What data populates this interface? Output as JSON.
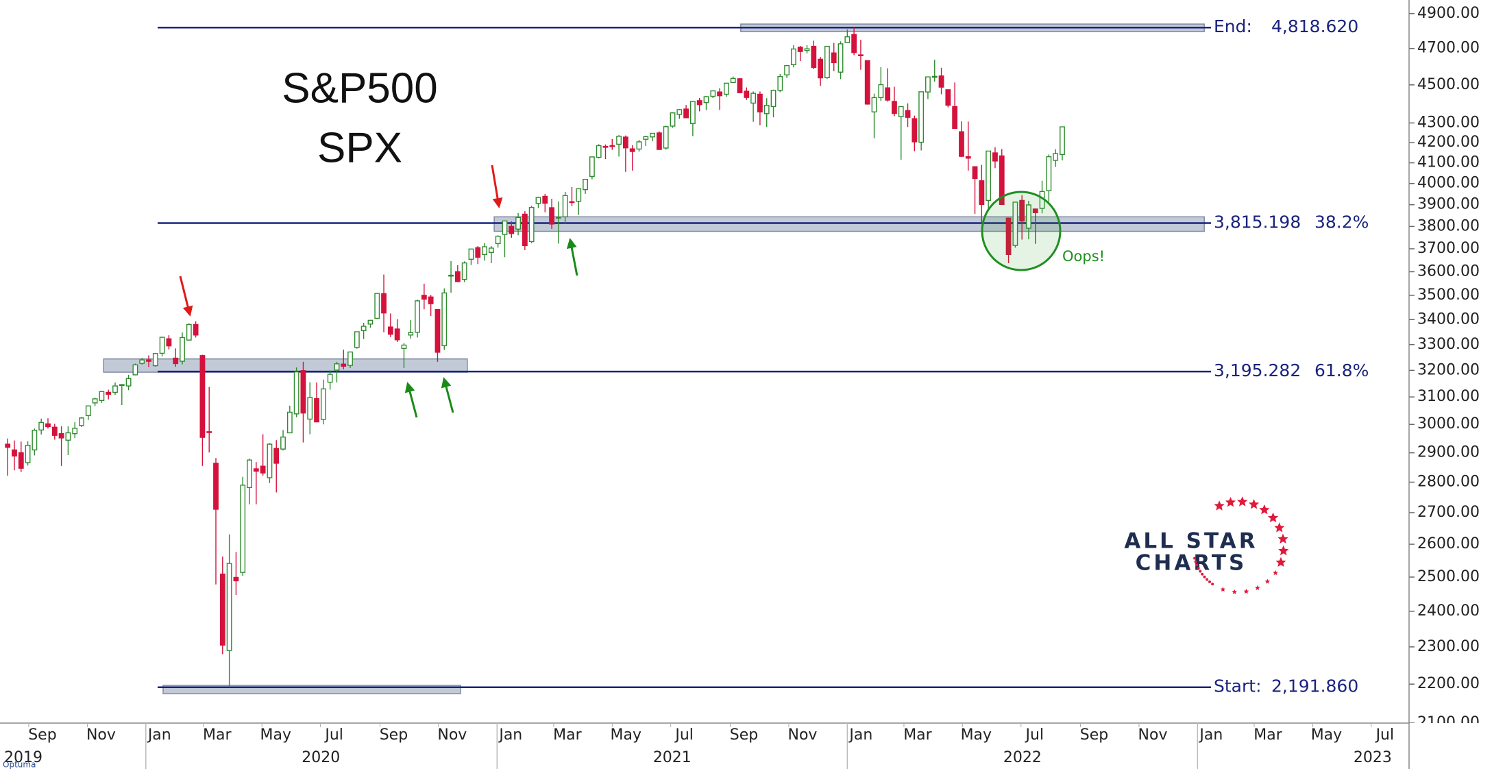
{
  "chart_data": {
    "type": "candlestick",
    "title": "S&P500",
    "subtitle": "SPX",
    "up_color": "#2e8b2e",
    "down_color": "#d4123c",
    "level_color": "#1a237e",
    "zone_color": "#9aa6bd",
    "ylog": true,
    "ylim": [
      2100,
      4980
    ],
    "yticks": [
      {
        "value": 4900,
        "label": "4900.00"
      },
      {
        "value": 4700,
        "label": "4700.00"
      },
      {
        "value": 4500,
        "label": "4500.00"
      },
      {
        "value": 4300,
        "label": "4300.00"
      },
      {
        "value": 4200,
        "label": "4200.00"
      },
      {
        "value": 4100,
        "label": "4100.00"
      },
      {
        "value": 4000,
        "label": "4000.00"
      },
      {
        "value": 3900,
        "label": "3900.00"
      },
      {
        "value": 3800,
        "label": "3800.00"
      },
      {
        "value": 3700,
        "label": "3700.00"
      },
      {
        "value": 3600,
        "label": "3600.00"
      },
      {
        "value": 3500,
        "label": "3500.00"
      },
      {
        "value": 3400,
        "label": "3400.00"
      },
      {
        "value": 3300,
        "label": "3300.00"
      },
      {
        "value": 3200,
        "label": "3200.00"
      },
      {
        "value": 3100,
        "label": "3100.00"
      },
      {
        "value": 3000,
        "label": "3000.00"
      },
      {
        "value": 2900,
        "label": "2900.00"
      },
      {
        "value": 2800,
        "label": "2800.00"
      },
      {
        "value": 2700,
        "label": "2700.00"
      },
      {
        "value": 2600,
        "label": "2600.00"
      },
      {
        "value": 2500,
        "label": "2500.00"
      },
      {
        "value": 2400,
        "label": "2400.00"
      },
      {
        "value": 2300,
        "label": "2300.00"
      },
      {
        "value": 2200,
        "label": "2200.00"
      },
      {
        "value": 2100,
        "label": "2100.00"
      }
    ],
    "xlim": [
      -1.14,
      207.71
    ],
    "xticks": [
      {
        "value": 3.14,
        "label": "Sep"
      },
      {
        "value": 11.86,
        "label": "Nov"
      },
      {
        "value": 20.57,
        "label": "Jan"
      },
      {
        "value": 29.14,
        "label": "Mar"
      },
      {
        "value": 37.86,
        "label": "May"
      },
      {
        "value": 46.57,
        "label": "Jul"
      },
      {
        "value": 55.43,
        "label": "Sep"
      },
      {
        "value": 64.14,
        "label": "Nov"
      },
      {
        "value": 72.86,
        "label": "Jan"
      },
      {
        "value": 81.29,
        "label": "Mar"
      },
      {
        "value": 90,
        "label": "May"
      },
      {
        "value": 98.71,
        "label": "Jul"
      },
      {
        "value": 107.57,
        "label": "Sep"
      },
      {
        "value": 116.29,
        "label": "Nov"
      },
      {
        "value": 125,
        "label": "Jan"
      },
      {
        "value": 133.43,
        "label": "Mar"
      },
      {
        "value": 142.14,
        "label": "May"
      },
      {
        "value": 150.86,
        "label": "Jul"
      },
      {
        "value": 159.71,
        "label": "Sep"
      },
      {
        "value": 168.43,
        "label": "Nov"
      },
      {
        "value": 177.14,
        "label": "Jan"
      },
      {
        "value": 185.57,
        "label": "Mar"
      },
      {
        "value": 194.29,
        "label": "May"
      },
      {
        "value": 203,
        "label": "Jul"
      }
    ],
    "year_ticks": [
      {
        "value": -31.57,
        "label": "2019"
      },
      {
        "value": 20.57,
        "label": "2020"
      },
      {
        "value": 72.86,
        "label": "2021"
      },
      {
        "value": 125,
        "label": "2022"
      },
      {
        "value": 177.14,
        "label": "2023"
      }
    ],
    "open": [
      2930,
      2910,
      2900,
      2866,
      2910,
      2980,
      3002,
      2990,
      2967,
      2944,
      2967,
      2996,
      3032,
      3078,
      3087,
      3117,
      3117,
      3144,
      3141,
      3183,
      3227,
      3240,
      3218,
      3266,
      3323,
      3247,
      3235,
      3318,
      3380,
      3257,
      2974,
      2864,
      2509,
      2290,
      2499,
      2514,
      2782,
      2845,
      2854,
      2815,
      2915,
      2913,
      2970,
      3038,
      3199,
      3019,
      3094,
      3018,
      3155,
      3201,
      3224,
      3219,
      3289,
      3356,
      3382,
      3405,
      3507,
      3370,
      3362,
      3285,
      3338,
      3349,
      3500,
      3493,
      3441,
      3296,
      3583,
      3600,
      3567,
      3654,
      3705,
      3675,
      3684,
      3723,
      3764,
      3800,
      3788,
      3856,
      3732,
      3906,
      3939,
      3886,
      3842,
      3844,
      3914,
      3916,
      3971,
      4034,
      4127,
      4181,
      4185,
      4192,
      4228,
      4169,
      4168,
      4217,
      4229,
      4249,
      4173,
      4284,
      4344,
      4372,
      4297,
      4416,
      4406,
      4439,
      4462,
      4450,
      4513,
      4533,
      4466,
      4403,
      4450,
      4348,
      4385,
      4471,
      4554,
      4610,
      4707,
      4689,
      4712,
      4640,
      4539,
      4675,
      4569,
      4733,
      4779,
      4664,
      4632,
      4357,
      4432,
      4484,
      4412,
      4333,
      4364,
      4322,
      4202,
      4462,
      4541,
      4548,
      4474,
      4385,
      4255,
      4130,
      4081,
      4013,
      3920,
      4149,
      4134,
      3838,
      3715,
      3920,
      3792,
      3880,
      3883,
      3966,
      4112,
      4141
    ],
    "high": [
      2950,
      2943,
      2939,
      2940,
      2985,
      3021,
      3022,
      3002,
      2993,
      2993,
      3008,
      3027,
      3067,
      3097,
      3121,
      3127,
      3154,
      3146,
      3183,
      3226,
      3248,
      3258,
      3267,
      3329,
      3337,
      3285,
      3348,
      3385,
      3393,
      3260,
      3137,
      2882,
      2562,
      2631,
      2576,
      2818,
      2880,
      2868,
      2965,
      2934,
      2944,
      2980,
      3068,
      3211,
      3233,
      3155,
      3154,
      3165,
      3200,
      3233,
      3280,
      3272,
      3352,
      3387,
      3399,
      3509,
      3588,
      3425,
      3402,
      3306,
      3398,
      3482,
      3549,
      3502,
      3441,
      3529,
      3646,
      3628,
      3645,
      3700,
      3712,
      3726,
      3712,
      3760,
      3826,
      3823,
      3861,
      3870,
      3895,
      3937,
      3950,
      3928,
      3915,
      3960,
      3983,
      3978,
      4020,
      4130,
      4192,
      4191,
      4218,
      4238,
      4236,
      4187,
      4214,
      4235,
      4249,
      4257,
      4286,
      4355,
      4372,
      4393,
      4415,
      4430,
      4441,
      4468,
      4482,
      4510,
      4545,
      4536,
      4486,
      4465,
      4465,
      4429,
      4475,
      4559,
      4608,
      4718,
      4714,
      4718,
      4744,
      4652,
      4713,
      4731,
      4740,
      4808,
      4819,
      4749,
      4633,
      4453,
      4596,
      4590,
      4490,
      4386,
      4402,
      4338,
      4465,
      4546,
      4637,
      4593,
      4475,
      4513,
      4308,
      4307,
      4081,
      4090,
      4158,
      4177,
      4168,
      3838,
      3913,
      3945,
      3918,
      3880,
      4013,
      4141,
      4167,
      4280
    ],
    "low": [
      2822,
      2840,
      2834,
      2856,
      2891,
      2964,
      2985,
      2946,
      2855,
      2892,
      2952,
      2991,
      3016,
      3066,
      3078,
      3091,
      3108,
      3070,
      3125,
      3181,
      3222,
      3213,
      3214,
      3254,
      3281,
      3214,
      3223,
      3316,
      3328,
      2855,
      2901,
      2478,
      2280,
      2192,
      2447,
      2504,
      2727,
      2727,
      2822,
      2797,
      2766,
      2908,
      2969,
      3026,
      2936,
      2965,
      3009,
      3000,
      3127,
      3154,
      3204,
      3209,
      3284,
      3322,
      3367,
      3402,
      3349,
      3330,
      3310,
      3209,
      3324,
      3328,
      3442,
      3415,
      3233,
      3279,
      3511,
      3555,
      3556,
      3629,
      3633,
      3648,
      3637,
      3705,
      3663,
      3749,
      3760,
      3694,
      3725,
      3884,
      3865,
      3789,
      3723,
      3814,
      3894,
      3853,
      3951,
      4020,
      4122,
      4118,
      4164,
      4131,
      4056,
      4062,
      4155,
      4183,
      4207,
      4164,
      4165,
      4275,
      4321,
      4327,
      4233,
      4360,
      4366,
      4430,
      4367,
      4436,
      4513,
      4457,
      4420,
      4306,
      4288,
      4279,
      4329,
      4461,
      4537,
      4595,
      4630,
      4672,
      4585,
      4495,
      4532,
      4574,
      4531,
      4733,
      4662,
      4582,
      4395,
      4222,
      4415,
      4411,
      4335,
      4115,
      4279,
      4157,
      4161,
      4424,
      4517,
      4450,
      4381,
      4271,
      4129,
      4062,
      3858,
      3810,
      3875,
      4074,
      3900,
      3637,
      3705,
      3741,
      3742,
      3722,
      3860,
      3914,
      4080,
      4112
    ],
    "close": [
      2919,
      2889,
      2847,
      2926,
      2979,
      3007,
      2992,
      2961,
      2952,
      2970,
      2986,
      3023,
      3067,
      3093,
      3120,
      3110,
      3141,
      3146,
      3169,
      3221,
      3240,
      3235,
      3265,
      3329,
      3295,
      3226,
      3328,
      3380,
      3338,
      2954,
      2972,
      2711,
      2305,
      2541,
      2489,
      2790,
      2875,
      2837,
      2831,
      2930,
      2864,
      2955,
      3044,
      3194,
      3041,
      3098,
      3009,
      3130,
      3185,
      3225,
      3216,
      3271,
      3351,
      3373,
      3397,
      3508,
      3427,
      3341,
      3319,
      3298,
      3348,
      3477,
      3484,
      3465,
      3270,
      3510,
      3585,
      3558,
      3638,
      3699,
      3663,
      3709,
      3703,
      3756,
      3825,
      3768,
      3841,
      3714,
      3887,
      3934,
      3907,
      3811,
      3842,
      3943,
      3913,
      3975,
      4020,
      4129,
      4185,
      4180,
      4181,
      4232,
      4174,
      4156,
      4204,
      4230,
      4247,
      4166,
      4281,
      4352,
      4369,
      4327,
      4412,
      4395,
      4437,
      4468,
      4442,
      4509,
      4535,
      4458,
      4433,
      4455,
      4357,
      4391,
      4471,
      4545,
      4605,
      4697,
      4683,
      4698,
      4595,
      4538,
      4712,
      4621,
      4726,
      4766,
      4677,
      4663,
      4398,
      4432,
      4501,
      4419,
      4349,
      4385,
      4329,
      4204,
      4463,
      4543,
      4546,
      4488,
      4392,
      4272,
      4132,
      4123,
      4024,
      3901,
      4158,
      4109,
      3901,
      3675,
      3912,
      3825,
      3899,
      3863,
      3962,
      4130,
      4145,
      4280
    ],
    "levels": [
      {
        "name": "End:",
        "value": 4818.62,
        "label": "4,818.620"
      },
      {
        "value": 3815.198,
        "label": "3,815.198",
        "pct": "38.2%"
      },
      {
        "value": 3195.282,
        "label": "3,195.282",
        "pct": "61.8%"
      },
      {
        "name": "Start:",
        "value": 2191.86,
        "label": "2,191.860"
      }
    ],
    "zones": [
      {
        "x": [
          109.14,
          178.14
        ],
        "y": [
          4795,
          4839
        ]
      },
      {
        "x": [
          72.43,
          178.14
        ],
        "y": [
          3778,
          3844
        ]
      },
      {
        "x": [
          14.29,
          68.43
        ],
        "y": [
          3193,
          3244
        ]
      },
      {
        "x": [
          23.14,
          67.43
        ],
        "y": [
          2175,
          2197
        ]
      }
    ],
    "annotation": "Oops!",
    "logo": [
      "ALL STAR",
      "CHARTS"
    ],
    "watermark": "Optuma"
  }
}
